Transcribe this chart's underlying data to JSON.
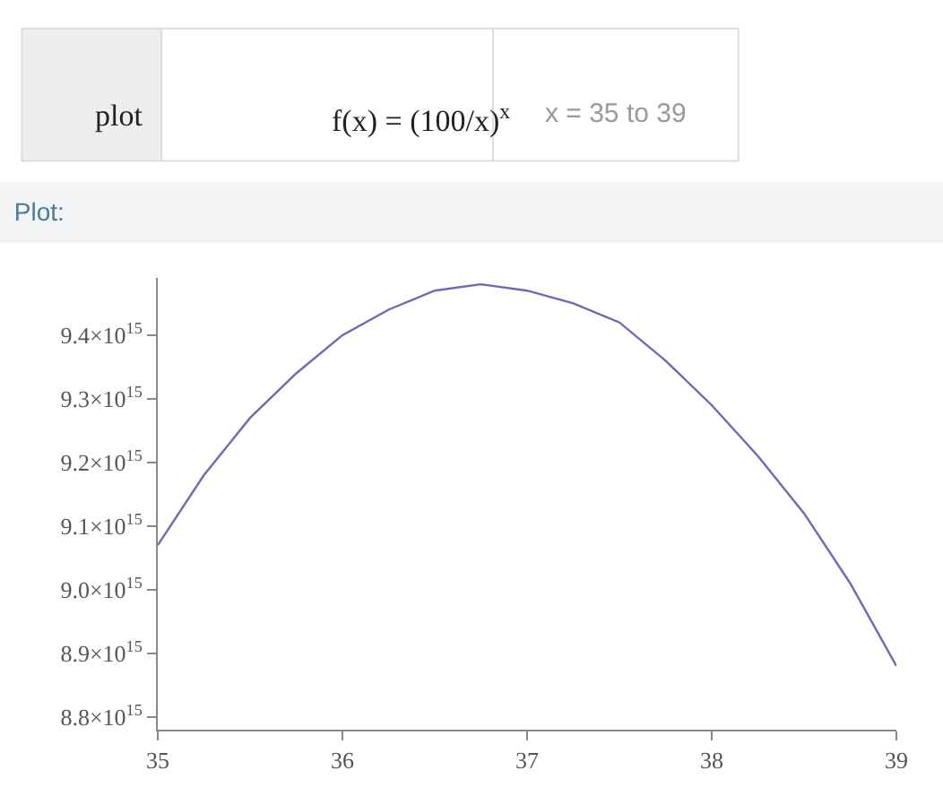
{
  "chart_data": {
    "type": "line",
    "title": "Plot:",
    "annotations": [
      "plot",
      "f(x) = (100/x)$^{x}$",
      "x = 35 to 39"
    ],
    "x": [
      35,
      35.25,
      35.5,
      35.75,
      36,
      36.25,
      36.5,
      36.75,
      37,
      37.25,
      37.5,
      37.75,
      38,
      38.25,
      38.5,
      38.75,
      39
    ],
    "series": [
      {
        "color": "#6a6ab8",
        "values": [
          9070000000000000.0,
          9180000000000000.0,
          9270000000000000.0,
          9340000000000000.0,
          9400000000000000.0,
          9440000000000000.0,
          9470000000000000.0,
          9480000000000000.0,
          9470000000000000.0,
          9450000000000000.0,
          9420000000000000.0,
          9360000000000000.0,
          9290000000000000.0,
          9210000000000000.0,
          9120000000000000.0,
          9010000000000000.0,
          8880000000000000.0
        ]
      }
    ],
    "xlim": [
      35,
      39
    ],
    "xticks": [
      35,
      36,
      37,
      38,
      39
    ],
    "ylim": [
      8780000000000000.0,
      9490000000000000.0
    ],
    "yticks": [
      {
        "value": 8800000000000000.0,
        "label": "8.8×10$^{15}$"
      },
      {
        "value": 8900000000000000.0,
        "label": "8.9×10$^{15}$"
      },
      {
        "value": 9000000000000000.0,
        "label": "9.0×10$^{15}$"
      },
      {
        "value": 9100000000000000.0,
        "label": "9.1×10$^{15}$"
      },
      {
        "value": 9200000000000000.0,
        "label": "9.2×10$^{15}$"
      },
      {
        "value": 9300000000000000.0,
        "label": "9.3×10$^{15}$"
      },
      {
        "value": 9400000000000000.0,
        "label": "9.4×10$^{15}$"
      }
    ],
    "marker": "none",
    "line_style": "solid"
  }
}
